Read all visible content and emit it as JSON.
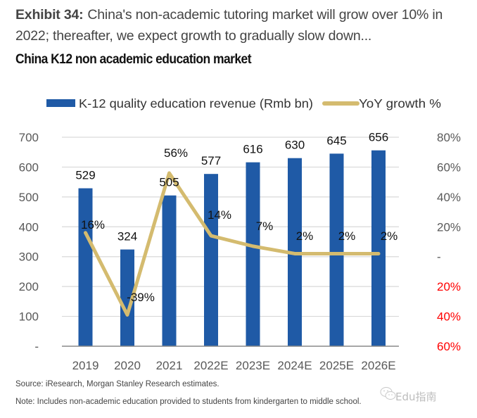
{
  "header": {
    "exhibit_label": "Exhibit 34:",
    "exhibit_text": "China's non-academic tutoring market will grow over 10% in 2022; thereafter, we expect growth to gradually slow down...",
    "subtitle": "China K12 non academic education market"
  },
  "chart_data": {
    "type": "bar",
    "title": "China K12 non academic education market",
    "categories": [
      "2019",
      "2020",
      "2021",
      "2022E",
      "2023E",
      "2024E",
      "2025E",
      "2026E"
    ],
    "series": [
      {
        "name": "K-12 quality education revenue (Rmb bn)",
        "type": "bar",
        "axis": "left",
        "color": "#1f5aa6",
        "values": [
          529,
          324,
          505,
          577,
          616,
          630,
          645,
          656
        ],
        "labels": [
          "529",
          "324",
          "505",
          "577",
          "616",
          "630",
          "645",
          "656"
        ]
      },
      {
        "name": "YoY growth %",
        "type": "line",
        "axis": "right",
        "color": "#d4bb6f",
        "values": [
          16,
          -39,
          56,
          14,
          7,
          2,
          2,
          2
        ],
        "labels": [
          "16%",
          "-39%",
          "56%",
          "14%",
          "7%",
          "2%",
          "2%",
          "2%"
        ]
      }
    ],
    "left_axis": {
      "ylim": [
        0,
        700
      ],
      "ticks": [
        0,
        100,
        200,
        300,
        400,
        500,
        600,
        700
      ],
      "tick_labels": [
        "-",
        "100",
        "200",
        "300",
        "400",
        "500",
        "600",
        "700"
      ]
    },
    "right_axis": {
      "ylim": [
        -60,
        80
      ],
      "ticks": [
        80,
        60,
        40,
        20,
        0,
        -20,
        -40,
        -60
      ],
      "tick_labels": [
        "80%",
        "60%",
        "40%",
        "20%",
        "-",
        "20%",
        "40%",
        "60%"
      ],
      "negative_color": "#ff0000"
    },
    "grid": true,
    "legend": "top"
  },
  "footer": {
    "source": "Source: iResearch, Morgan Stanley Research estimates.",
    "note": "Note: Includes non-academic education provided to students from kindergarten to middle school."
  },
  "watermark": {
    "text": "Edu指南",
    "icon": "wechat-icon"
  }
}
